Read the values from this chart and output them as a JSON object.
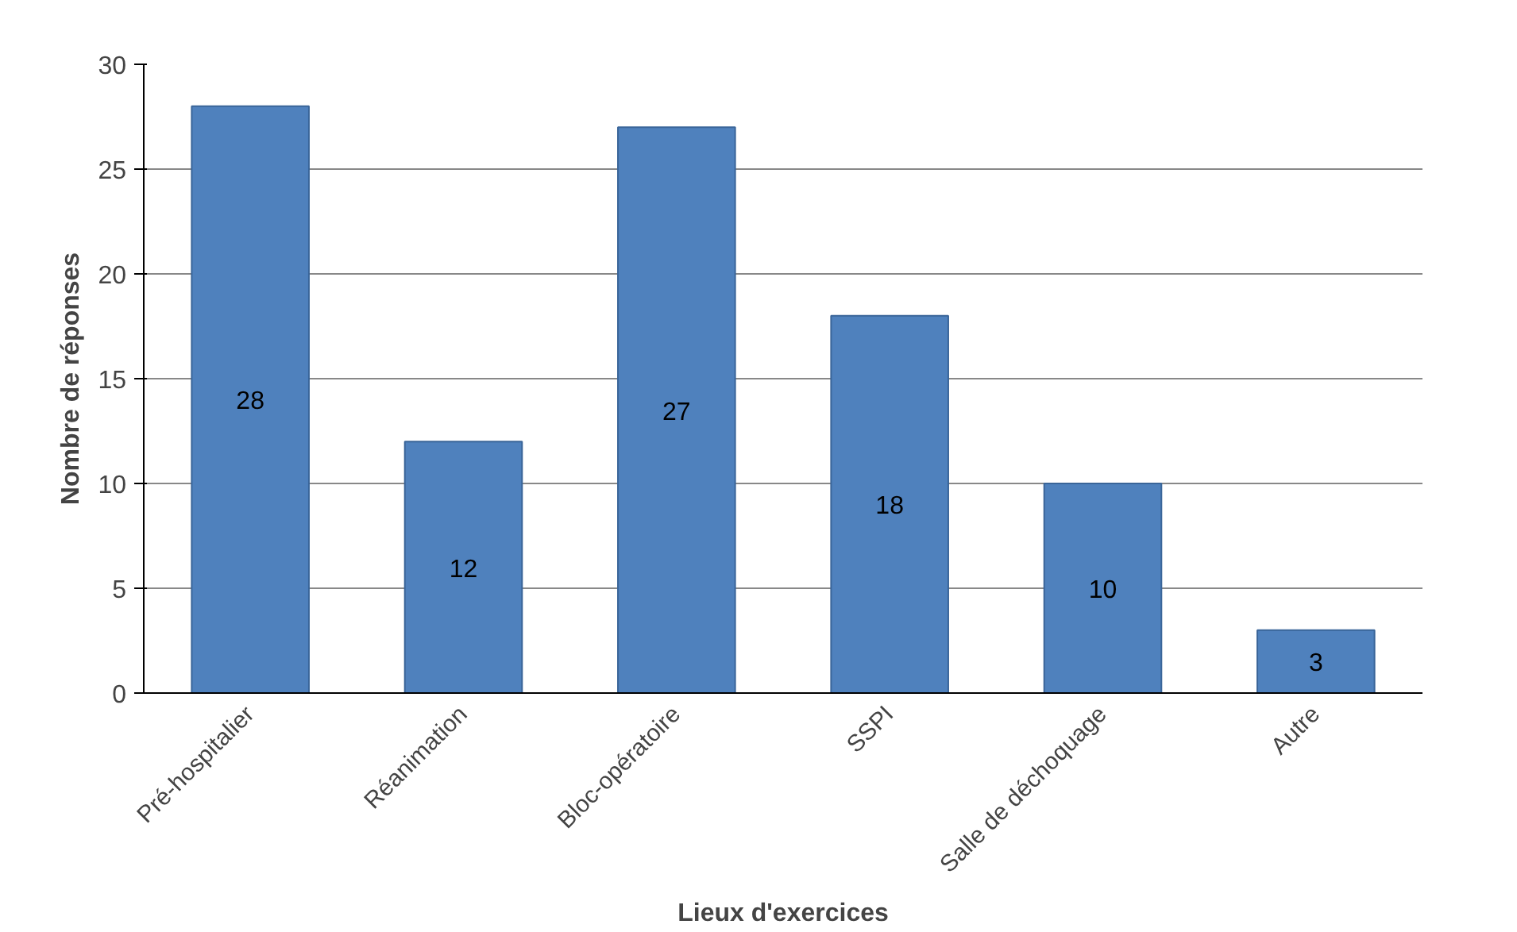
{
  "chart_data": {
    "type": "bar",
    "categories": [
      "Pré-hospitalier",
      "Réanimation",
      "Bloc-opératoire",
      "SSPI",
      "Salle de déchoquage",
      "Autre"
    ],
    "values": [
      28,
      12,
      27,
      18,
      10,
      3
    ],
    "color": "#4f81bd",
    "xlabel": "Lieux d'exercices",
    "ylabel": "Nombre de réponses",
    "ylim": [
      0,
      30
    ],
    "yticks": [
      0,
      5,
      10,
      15,
      20,
      25,
      30
    ],
    "grid": "y",
    "data_labels": true
  }
}
